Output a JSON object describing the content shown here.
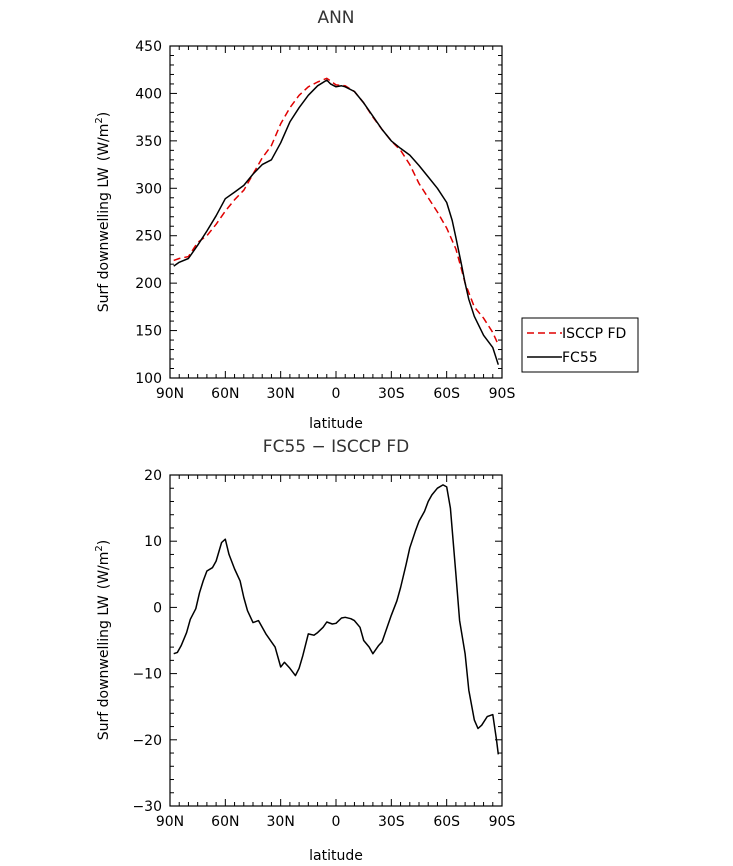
{
  "chart_data": [
    {
      "type": "line",
      "title": "ANN",
      "xlabel": "latitude",
      "ylabel": "Surf downwelling LW",
      "ylabel_units": "(W/m",
      "ylabel_sup": "2",
      "ylabel_close": ")",
      "x_ticks": [
        {
          "value": -90,
          "label": "90N"
        },
        {
          "value": -60,
          "label": "60N"
        },
        {
          "value": -30,
          "label": "30N"
        },
        {
          "value": 0,
          "label": "0"
        },
        {
          "value": 30,
          "label": "30S"
        },
        {
          "value": 60,
          "label": "60S"
        },
        {
          "value": 90,
          "label": "90S"
        }
      ],
      "xlim": [
        -90,
        90
      ],
      "ylim": [
        100,
        450
      ],
      "y_ticks": [
        100,
        150,
        200,
        250,
        300,
        350,
        400,
        450
      ],
      "legend_position": "right",
      "series": [
        {
          "name": "ISCCP FD",
          "color": "#e00000",
          "dash": "dashed",
          "x": [
            -88,
            -85,
            -80,
            -75,
            -70,
            -65,
            -60,
            -55,
            -50,
            -45,
            -40,
            -35,
            -30,
            -25,
            -20,
            -15,
            -10,
            -5,
            0,
            5,
            10,
            15,
            20,
            25,
            30,
            35,
            40,
            45,
            50,
            55,
            60,
            65,
            68,
            70,
            72,
            75,
            80,
            85,
            88
          ],
          "y": [
            224,
            226,
            228,
            243,
            250,
            262,
            276,
            288,
            298,
            315,
            332,
            345,
            368,
            385,
            398,
            407,
            412,
            416,
            409,
            408,
            402,
            390,
            375,
            362,
            350,
            340,
            325,
            305,
            290,
            275,
            258,
            236,
            215,
            200,
            190,
            175,
            163,
            148,
            135
          ]
        },
        {
          "name": "FC55",
          "color": "#000000",
          "dash": "solid",
          "x": [
            -88,
            -85,
            -80,
            -75,
            -70,
            -65,
            -60,
            -55,
            -50,
            -45,
            -40,
            -35,
            -30,
            -25,
            -20,
            -15,
            -10,
            -5,
            -3,
            0,
            3,
            5,
            10,
            15,
            20,
            25,
            30,
            35,
            40,
            45,
            50,
            55,
            60,
            63,
            65,
            68,
            70,
            72,
            75,
            80,
            85,
            88
          ],
          "y": [
            218,
            222,
            226,
            240,
            255,
            271,
            289,
            296,
            303,
            315,
            325,
            330,
            348,
            370,
            385,
            398,
            408,
            414,
            410,
            407,
            408,
            407,
            402,
            390,
            376,
            362,
            350,
            342,
            335,
            324,
            312,
            300,
            285,
            266,
            248,
            220,
            200,
            183,
            165,
            145,
            132,
            114
          ]
        }
      ]
    },
    {
      "type": "line",
      "title": "FC55 − ISCCP FD",
      "xlabel": "latitude",
      "ylabel": "Surf downwelling LW",
      "ylabel_units": "(W/m",
      "ylabel_sup": "2",
      "ylabel_close": ")",
      "x_ticks": [
        {
          "value": -90,
          "label": "90N"
        },
        {
          "value": -60,
          "label": "60N"
        },
        {
          "value": -30,
          "label": "30N"
        },
        {
          "value": 0,
          "label": "0"
        },
        {
          "value": 30,
          "label": "30S"
        },
        {
          "value": 60,
          "label": "60S"
        },
        {
          "value": 90,
          "label": "90S"
        }
      ],
      "xlim": [
        -90,
        90
      ],
      "ylim": [
        -30,
        20
      ],
      "y_ticks": [
        -30,
        -20,
        -10,
        0,
        10,
        20
      ],
      "y_tick_labels": [
        "−30",
        "−20",
        "−10",
        "0",
        "10",
        "20"
      ],
      "series": [
        {
          "name": "",
          "color": "#000000",
          "dash": "solid",
          "x": [
            -88,
            -86,
            -84,
            -81,
            -79,
            -76,
            -74,
            -72,
            -70,
            -67,
            -65,
            -62,
            -60,
            -58,
            -55,
            -52,
            -50,
            -48,
            -45,
            -42,
            -40,
            -38,
            -35,
            -33,
            -30,
            -28,
            -25,
            -22,
            -20,
            -18,
            -15,
            -12,
            -10,
            -7,
            -5,
            -2,
            0,
            3,
            5,
            8,
            10,
            13,
            15,
            18,
            20,
            23,
            25,
            28,
            30,
            33,
            35,
            38,
            40,
            43,
            45,
            48,
            50,
            52,
            55,
            58,
            60,
            62,
            65,
            67,
            70,
            72,
            75,
            77,
            79,
            82,
            85,
            87,
            88
          ],
          "y": [
            -7,
            -6.8,
            -5.8,
            -3.8,
            -1.8,
            -0.2,
            2.2,
            4,
            5.5,
            6,
            7,
            9.8,
            10.3,
            8,
            5.8,
            4,
            1.5,
            -0.5,
            -2.3,
            -2,
            -3,
            -4,
            -5.2,
            -6,
            -9,
            -8.3,
            -9.2,
            -10.3,
            -9.2,
            -7.3,
            -4,
            -4.2,
            -3.8,
            -3,
            -2.2,
            -2.5,
            -2.4,
            -1.6,
            -1.5,
            -1.7,
            -2,
            -3,
            -5,
            -6,
            -7,
            -5.8,
            -5.2,
            -2.8,
            -1.2,
            1,
            3,
            6.5,
            9,
            11.5,
            13,
            14.5,
            16,
            17,
            18,
            18.5,
            18.2,
            15,
            5,
            -2,
            -7,
            -12.5,
            -17,
            -18.3,
            -17.8,
            -16.5,
            -16.2,
            -20,
            -22.2
          ]
        }
      ]
    }
  ]
}
